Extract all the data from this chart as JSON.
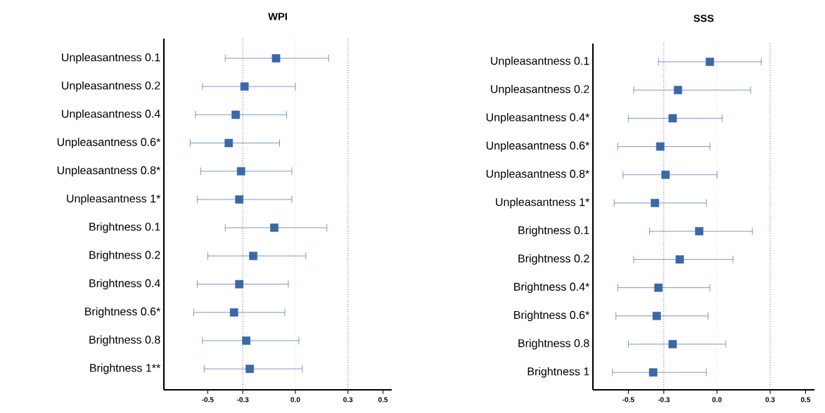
{
  "chart_data": [
    {
      "type": "scatter",
      "title": "WPI",
      "orientation": "horizontal",
      "marker": "square",
      "color": "#3a68a8",
      "categories": [
        "Unpleasantness 0.1",
        "Unpleasantness 0.2",
        "Unpleasantness 0.4",
        "Unpleasantness 0.6*",
        "Unpleasantness 0.8*",
        "Unpleasantness 1*",
        "Brightness  0.1",
        "Brightness 0.2",
        "Brightness 0.4",
        "Brightness 0.6*",
        "Brightness 0.8",
        "Brightness 1**"
      ],
      "values": [
        -0.11,
        -0.29,
        -0.34,
        -0.38,
        -0.31,
        -0.32,
        -0.12,
        -0.24,
        -0.32,
        -0.35,
        -0.28,
        -0.26
      ],
      "errors": [
        [
          -0.4,
          0.19
        ],
        [
          -0.53,
          0.0
        ],
        [
          -0.57,
          -0.05
        ],
        [
          -0.6,
          -0.09
        ],
        [
          -0.54,
          -0.02
        ],
        [
          -0.56,
          -0.02
        ],
        [
          -0.4,
          0.18
        ],
        [
          -0.5,
          0.06
        ],
        [
          -0.56,
          -0.04
        ],
        [
          -0.58,
          -0.06
        ],
        [
          -0.53,
          0.02
        ],
        [
          -0.52,
          0.04
        ]
      ],
      "xlim": [
        -0.75,
        0.55
      ],
      "xticks": [
        -0.5,
        -0.3,
        {
          "value": 0,
          "label": "0.0"
        },
        0.3,
        0.5
      ],
      "ref_lines": [
        {
          "axis": "x",
          "value": -0.3,
          "color": "#000000",
          "line_style": "dotted"
        },
        {
          "axis": "x",
          "value": 0,
          "color": "#808080",
          "line_style": "dotted"
        },
        {
          "axis": "x",
          "value": 0.3,
          "color": "#000000",
          "line_style": "dotted"
        }
      ]
    },
    {
      "type": "scatter",
      "title": "SSS",
      "orientation": "horizontal",
      "marker": "square",
      "color": "#3a68a8",
      "categories": [
        "Unpleasantness 0.1",
        "Unpleasantness 0.2",
        "Unpleasantness 0.4*",
        "Unpleasantness 0.6*",
        "Unpleasantness 0.8*",
        "Unpleasantness 1*",
        "Brightness  0.1",
        "Brightness 0.2",
        "Brightness 0.4*",
        "Brightness 0.6*",
        "Brightness 0.8",
        "Brightness 1"
      ],
      "values": [
        -0.04,
        -0.22,
        -0.25,
        -0.32,
        -0.29,
        -0.35,
        -0.1,
        -0.21,
        -0.33,
        -0.34,
        -0.25,
        -0.36
      ],
      "errors": [
        [
          -0.33,
          0.25
        ],
        [
          -0.47,
          0.19
        ],
        [
          -0.5,
          0.03
        ],
        [
          -0.56,
          -0.04
        ],
        [
          -0.53,
          0.0
        ],
        [
          -0.58,
          -0.06
        ],
        [
          -0.38,
          0.2
        ],
        [
          -0.47,
          0.09
        ],
        [
          -0.56,
          -0.04
        ],
        [
          -0.57,
          -0.05
        ],
        [
          -0.5,
          0.05
        ],
        [
          -0.59,
          -0.06
        ]
      ],
      "xlim": [
        -0.7,
        0.55
      ],
      "xticks": [
        -0.5,
        -0.3,
        {
          "value": 0,
          "label": "0.0"
        },
        0.3,
        0.5
      ],
      "ref_lines": [
        {
          "axis": "x",
          "value": -0.3,
          "color": "#000000",
          "line_style": "dotted"
        },
        {
          "axis": "x",
          "value": 0,
          "color": "#808080",
          "line_style": "dotted"
        },
        {
          "axis": "x",
          "value": 0.3,
          "color": "#000000",
          "line_style": "dotted"
        }
      ]
    }
  ]
}
